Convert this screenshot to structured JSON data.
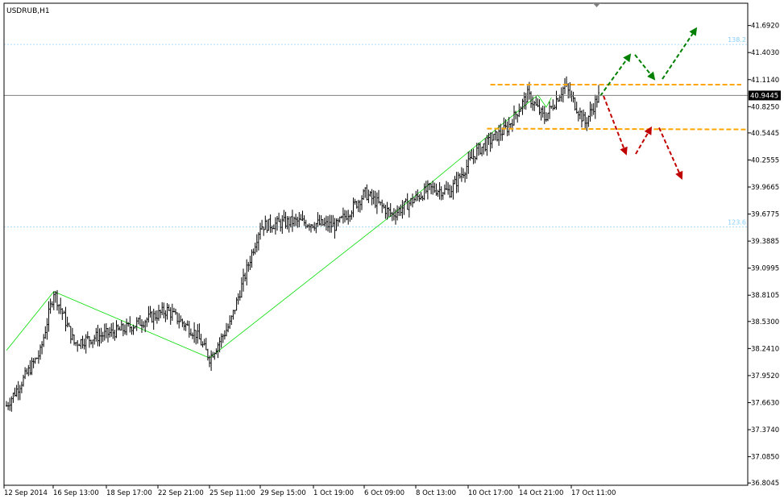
{
  "window": {
    "symbol_label": "USDRUB,H1"
  },
  "colors": {
    "background": "#ffffff",
    "frame": "#000000",
    "bars": "#000000",
    "price_line": "#7f7f7f",
    "fibo": "#87cefa",
    "zigzag": "#00dd00",
    "support_resistance": "#ffa500",
    "bullish_arrow": "#008000",
    "bearish_arrow": "#c00000"
  },
  "chart_data": {
    "type": "candlestick",
    "symbol": "USDRUB",
    "timeframe": "H1",
    "y_ticks": [
      "41.6920",
      "41.4030",
      "41.1140",
      "40.8250",
      "40.5445",
      "40.2555",
      "39.9665",
      "39.6775",
      "39.3885",
      "39.0995",
      "38.8105",
      "38.5300",
      "38.2410",
      "37.9520",
      "37.6630",
      "37.3740",
      "37.0850",
      "36.8045"
    ],
    "x_ticks": [
      "12 Sep 2014",
      "16 Sep 13:00",
      "18 Sep 17:00",
      "22 Sep 21:00",
      "25 Sep 11:00",
      "29 Sep 15:00",
      "1 Oct 19:00",
      "6 Oct 09:00",
      "8 Oct 13:00",
      "10 Oct 17:00",
      "14 Oct 21:00",
      "17 Oct 11:00"
    ],
    "ylim": [
      36.78,
      41.93
    ],
    "current_price": "40.9445",
    "fibo_levels": [
      {
        "label": "138.2",
        "value": 41.49
      },
      {
        "label": "123.6",
        "value": 39.54
      }
    ],
    "resistance": 41.06,
    "support": 40.59,
    "zigzag": [
      {
        "bar": 0,
        "price": 38.22
      },
      {
        "bar": 28,
        "price": 38.85
      },
      {
        "bar": 120,
        "price": 38.14
      },
      {
        "bar": 228,
        "price": 39.67
      },
      {
        "bar": 314,
        "price": 40.95
      },
      {
        "bar": 319,
        "price": 40.82
      },
      {
        "bar": 322,
        "price": 40.92
      }
    ],
    "anchors": [
      {
        "bar": 0,
        "price": 37.63
      },
      {
        "bar": 20,
        "price": 38.2
      },
      {
        "bar": 28,
        "price": 38.85
      },
      {
        "bar": 40,
        "price": 38.3
      },
      {
        "bar": 70,
        "price": 38.45
      },
      {
        "bar": 95,
        "price": 38.65
      },
      {
        "bar": 112,
        "price": 38.4
      },
      {
        "bar": 120,
        "price": 38.14
      },
      {
        "bar": 132,
        "price": 38.5
      },
      {
        "bar": 150,
        "price": 39.55
      },
      {
        "bar": 170,
        "price": 39.6
      },
      {
        "bar": 195,
        "price": 39.55
      },
      {
        "bar": 212,
        "price": 39.9
      },
      {
        "bar": 228,
        "price": 39.67
      },
      {
        "bar": 250,
        "price": 39.95
      },
      {
        "bar": 262,
        "price": 39.92
      },
      {
        "bar": 278,
        "price": 40.35
      },
      {
        "bar": 296,
        "price": 40.6
      },
      {
        "bar": 308,
        "price": 40.95
      },
      {
        "bar": 318,
        "price": 40.7
      },
      {
        "bar": 330,
        "price": 41.05
      },
      {
        "bar": 342,
        "price": 40.65
      },
      {
        "bar": 350,
        "price": 40.94
      }
    ],
    "scenario_arrows": {
      "bullish": [
        [
          40.94,
          41.38
        ],
        [
          41.38,
          41.12
        ],
        [
          41.12,
          41.66
        ]
      ],
      "bearish": [
        [
          40.94,
          40.32
        ],
        [
          40.32,
          40.6
        ],
        [
          40.6,
          40.06
        ]
      ]
    }
  }
}
